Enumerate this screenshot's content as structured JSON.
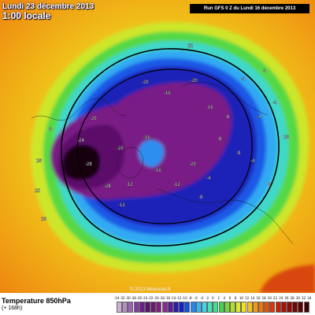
{
  "header": {
    "date_line": "Lundi 23 décembre 2013",
    "time_line": "1:00 locale",
    "run_info": "Run GFS 0 Z du Lundi 16 décembre 2013"
  },
  "copyright": "© 2013 Meteociel.fr",
  "footer": {
    "title": "Temperature 850hPa",
    "subtitle": "(+ 168h)"
  },
  "map_labels": [
    {
      "text": "-28",
      "v": -28
    },
    {
      "text": "-24",
      "v": -24
    },
    {
      "text": "-20",
      "v": -20
    },
    {
      "text": "-16",
      "v": -16
    },
    {
      "text": "-12",
      "v": -12
    },
    {
      "text": "-8",
      "v": -8
    },
    {
      "text": "-4",
      "v": -4
    },
    {
      "text": "8",
      "v": 8
    },
    {
      "text": "12",
      "v": 12
    },
    {
      "text": "16",
      "v": 16
    }
  ],
  "legend": {
    "ticks": [
      "-34",
      "-32",
      "-30",
      "-28",
      "-26",
      "-24",
      "-22",
      "-20",
      "-18",
      "-16",
      "-14",
      "-12",
      "-10",
      "-8",
      "-6",
      "-4",
      "-2",
      "0",
      "2",
      "4",
      "6",
      "8",
      "10",
      "12",
      "14",
      "16",
      "18",
      "20",
      "22",
      "24",
      "26",
      "28",
      "30",
      "32",
      "34"
    ],
    "colors": [
      "#cdb2d8",
      "#b48ec8",
      "#9a64b6",
      "#7e3fa3",
      "#6a1f8a",
      "#581070",
      "#6b1a6b",
      "#801e7e",
      "#8a2a8e",
      "#5a1a9a",
      "#2a1ab0",
      "#1020d0",
      "#1050e8",
      "#1f86f2",
      "#35b7f7",
      "#3fd6e9",
      "#43e4bc",
      "#3ee089",
      "#42d44f",
      "#79d437",
      "#afe02c",
      "#dde92f",
      "#f4e21e",
      "#f6c215",
      "#f59a10",
      "#f0730c",
      "#e85209",
      "#d93507",
      "#c61f05",
      "#ad1003",
      "#920802",
      "#760402",
      "#5a0201",
      "#400001"
    ]
  }
}
